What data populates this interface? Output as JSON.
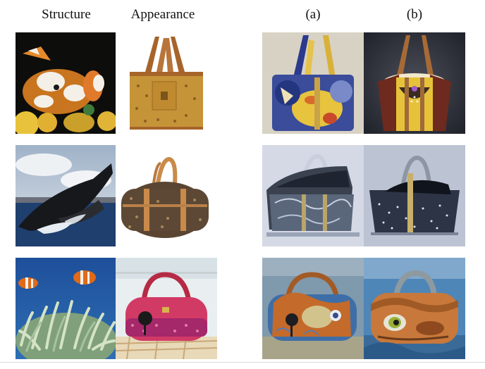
{
  "columns": {
    "structure": "Structure",
    "appearance": "Appearance",
    "a": "(a)",
    "b": "(b)"
  },
  "rows": [
    {
      "structure": {
        "name": "pufferfish-image"
      },
      "appearance": {
        "name": "brown-monogram-tote-image"
      },
      "a": {
        "name": "result-a-fish-tote-image"
      },
      "b": {
        "name": "result-b-fish-tote-image"
      }
    },
    {
      "structure": {
        "name": "whale-image"
      },
      "appearance": {
        "name": "monogram-duffel-bag-image"
      },
      "a": {
        "name": "result-a-whale-bag-image"
      },
      "b": {
        "name": "result-b-whale-bag-image"
      }
    },
    {
      "structure": {
        "name": "clownfish-anemone-image"
      },
      "appearance": {
        "name": "pink-handbag-image"
      },
      "a": {
        "name": "result-a-clownfish-bag-image"
      },
      "b": {
        "name": "result-b-clownfish-bag-image"
      }
    }
  ],
  "colors": {
    "ocean_blue": "#1e4f9a",
    "tan_leather": "#c8974f",
    "monogram_brown": "#6b543c",
    "pink": "#d23a66"
  }
}
